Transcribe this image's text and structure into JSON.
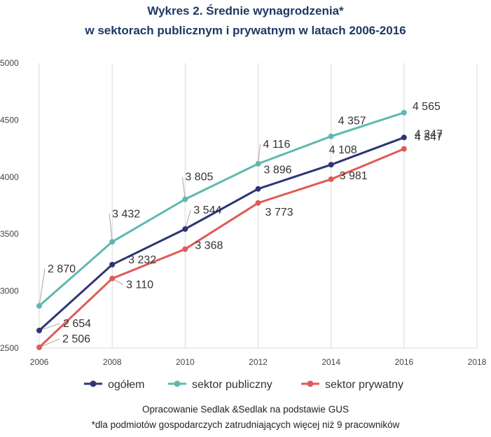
{
  "chart_data": {
    "type": "line",
    "title_line1": "Wykres 2. Średnie wynagrodzenia*",
    "title_line2": "w sektorach publicznym i prywatnym w latach 2006-2016",
    "x": [
      2006,
      2008,
      2010,
      2012,
      2014,
      2016
    ],
    "xlim": [
      2006,
      2018
    ],
    "ylim": [
      2500,
      5000
    ],
    "x_ticks": [
      "2006",
      "2008",
      "2010",
      "2012",
      "2014",
      "2016",
      "2018"
    ],
    "y_ticks": [
      "2500",
      "3000",
      "3500",
      "4000",
      "4500",
      "5000"
    ],
    "grid": "vertical",
    "legend_position": "bottom",
    "series": [
      {
        "name": "ogółem",
        "color": "#2e3575",
        "values": [
          2654,
          3232,
          3544,
          3896,
          4108,
          4347
        ],
        "labels": [
          "2 654",
          "3 232",
          "3 544",
          "3 896",
          "4 108",
          "4 347"
        ]
      },
      {
        "name": "sektor publiczny",
        "color": "#5fb8b0",
        "values": [
          2870,
          3432,
          3805,
          4116,
          4357,
          4565
        ],
        "labels": [
          "2 870",
          "3 432",
          "3 805",
          "4 116",
          "4 357",
          "4 565"
        ]
      },
      {
        "name": "sektor prywatny",
        "color": "#e05a57",
        "values": [
          2506,
          3110,
          3368,
          3773,
          3981,
          4247
        ],
        "labels": [
          "2 506",
          "3 110",
          "3 368",
          "3 773",
          "3 981",
          "4 247"
        ]
      }
    ]
  },
  "footer": {
    "source": "Opracowanie Sedlak &Sedlak na podstawie GUS",
    "note": "*dla podmiotów gospodarczych zatrudniających więcej niż 9 pracowników"
  }
}
